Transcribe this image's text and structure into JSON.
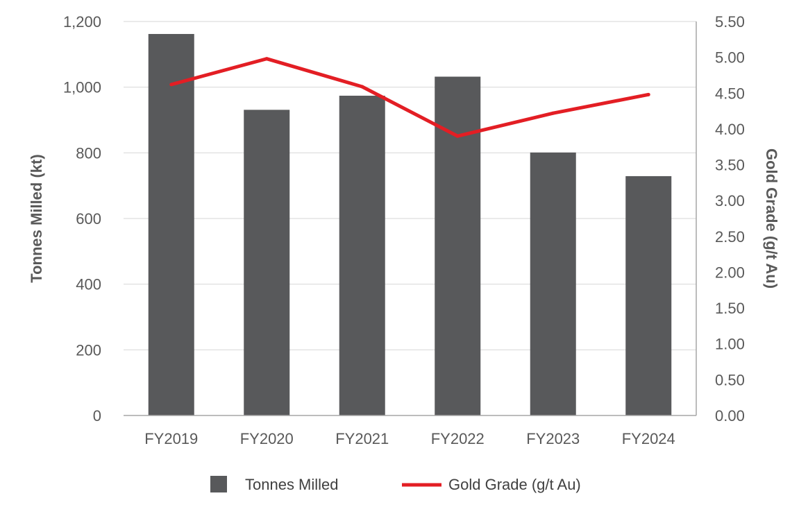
{
  "chart_data": {
    "type": "bar",
    "categories": [
      "FY2019",
      "FY2020",
      "FY2021",
      "FY2022",
      "FY2023",
      "FY2024"
    ],
    "series": [
      {
        "name": "Tonnes Milled",
        "kind": "bar",
        "axis": "left",
        "color": "#58595b",
        "values": [
          1162,
          931,
          974,
          1032,
          801,
          729
        ]
      },
      {
        "name": "Gold Grade (g/t Au)",
        "kind": "line",
        "axis": "right",
        "color": "#e31e24",
        "values": [
          4.62,
          4.98,
          4.59,
          3.9,
          4.22,
          4.48
        ]
      }
    ],
    "ylabel": "Tonnes Milled (kt)",
    "y2label": "Gold Grade (g/t Au)",
    "ylim": [
      0,
      1200
    ],
    "y2lim": [
      0,
      5.5
    ],
    "yticks": [
      "0",
      "200",
      "400",
      "600",
      "800",
      "1,000",
      "1,200"
    ],
    "y2ticks": [
      "0.00",
      "0.50",
      "1.00",
      "1.50",
      "2.00",
      "2.50",
      "3.00",
      "3.50",
      "4.00",
      "4.50",
      "5.00",
      "5.50"
    ],
    "legend": [
      "Tonnes Milled",
      "Gold Grade (g/t Au)"
    ],
    "legend_position": "bottom",
    "grid": true
  }
}
